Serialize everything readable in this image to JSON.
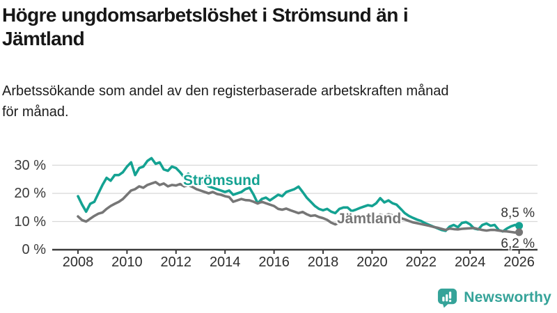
{
  "header": {
    "title": "Högre ungdomsarbetslöshet i Strömsund än i\nJämtland",
    "subtitle": "Arbetssökande som andel av den registerbaserade arbetskraften månad\nför månad."
  },
  "chart_data": {
    "type": "line",
    "title": "Högre ungdomsarbetslöshet i Strömsund än i Jämtland",
    "subtitle": "Arbetssökande som andel av den registerbaserade arbetskraften månad för månad.",
    "unit": "%",
    "x_start_year": 2008,
    "x_step_months": 2,
    "x_tick_labels": [
      "2008",
      "2010",
      "2012",
      "2014",
      "2016",
      "2018",
      "2020",
      "2022",
      "2024",
      "2026"
    ],
    "y_ticks": [
      0,
      10,
      20,
      30
    ],
    "y_tick_labels": [
      "0 %",
      "10 %",
      "20 %",
      "30 %"
    ],
    "ylim": [
      0,
      35
    ],
    "grid": "horizontal",
    "legend_position": "inline-labels",
    "series": [
      {
        "name": "Strömsund",
        "color": "#14a292",
        "end_label": "8,5 %",
        "end_value": 8.5,
        "values": [
          19,
          16,
          13.5,
          16.3,
          17,
          20,
          23,
          25.5,
          24.5,
          26.5,
          26.5,
          27.5,
          29.5,
          31,
          26.5,
          29,
          29.5,
          31.5,
          32.5,
          30.5,
          31,
          28.5,
          28,
          29.5,
          29,
          27.5,
          25.7,
          27,
          25.5,
          24.5,
          24.5,
          23.5,
          22.5,
          22,
          21.5,
          21,
          20.5,
          21,
          19.5,
          20,
          20.5,
          21.5,
          22,
          19.5,
          16.5,
          18,
          18.5,
          17.5,
          18.5,
          19.5,
          19,
          20.5,
          21,
          21.5,
          22.4,
          20.5,
          18.5,
          17,
          15.5,
          14.5,
          14,
          14.5,
          13.5,
          13,
          14.5,
          15,
          15,
          13.7,
          14.2,
          14.8,
          15.3,
          15.8,
          15.5,
          16.5,
          18.3,
          16.8,
          17.5,
          16.5,
          16,
          14.5,
          13,
          12,
          11.3,
          10.7,
          10.2,
          9.4,
          8.8,
          8.2,
          7.6,
          7,
          6.7,
          8.2,
          8.8,
          8,
          9.5,
          9.8,
          9,
          7.5,
          7.2,
          8.8,
          9.3,
          8.5,
          8.8,
          7,
          6.5,
          7.5,
          8.3,
          8.8,
          8.5
        ]
      },
      {
        "name": "Jämtland",
        "color": "#767676",
        "end_label": "6,2 %",
        "end_value": 6.2,
        "values": [
          11.8,
          10.5,
          10,
          11,
          12,
          12.8,
          13.2,
          14.5,
          15.5,
          16.3,
          17,
          18,
          19.5,
          21,
          21.5,
          22.5,
          22,
          23,
          23.5,
          24,
          23,
          23.5,
          22.5,
          23,
          22.8,
          23.3,
          22.5,
          23,
          22.3,
          21.5,
          21,
          20.5,
          20,
          20.5,
          19.8,
          19.5,
          19,
          18.7,
          17,
          17.5,
          18,
          17.6,
          17.5,
          17,
          16.4,
          17,
          16.5,
          16,
          15.5,
          14.5,
          14.2,
          14.6,
          14,
          13.5,
          13,
          13.4,
          12.6,
          12,
          12.2,
          11.6,
          11.2,
          10.6,
          9.6,
          9,
          9.6,
          10,
          10,
          10.4,
          10,
          10.6,
          11,
          11.4,
          11.2,
          11.6,
          12.5,
          12,
          12.6,
          12.2,
          11.8,
          11.2,
          10.8,
          10.2,
          9.7,
          9.4,
          9.1,
          8.8,
          8.5,
          8.1,
          7.8,
          7.4,
          7,
          7.5,
          7.3,
          7.2,
          7.4,
          7.5,
          7.6,
          7.7,
          7.3,
          7,
          6.8,
          7,
          7,
          6.8,
          6.6,
          6.5,
          6.3,
          6.1,
          6.2
        ]
      }
    ],
    "colors": {
      "grid": "#d8d8d8",
      "axis": "#3a3a3a",
      "tick_label": "#2d2d2d"
    }
  },
  "footer": {
    "brand": "Newsworthy",
    "brand_color": "#35a399",
    "logo_icon": "bar-chart-speech-bubble"
  }
}
